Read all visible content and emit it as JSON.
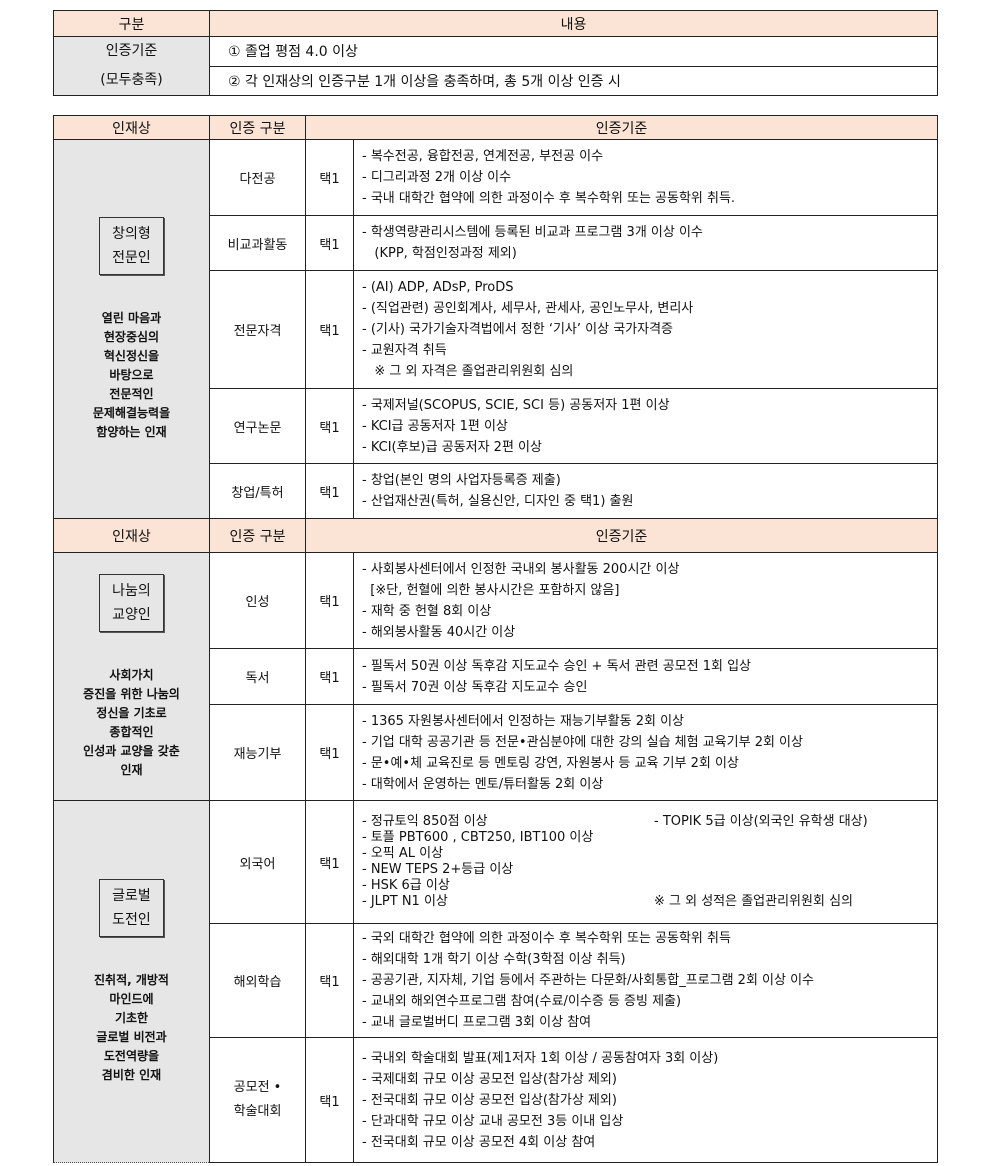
{
  "summary": {
    "headers": [
      "구분",
      "내용"
    ],
    "label_lines": [
      "인증기준",
      "(모두충족)"
    ],
    "rows": [
      "① 졸업 평점 4.0 이상",
      "② 각 인재상의 인증구분 1개 이상을 충족하며, 총 5개 이상 인증 시"
    ]
  },
  "main_headers": [
    "인재상",
    "인증 구분",
    "인증기준"
  ],
  "groups": [
    {
      "title_lines": [
        "창의형",
        "전문인"
      ],
      "desc_lines": [
        "열린 마음과",
        "현장중심의",
        "혁신정신을",
        "바탕으로",
        "전문적인",
        "문제해결능력을",
        "함양하는 인재"
      ],
      "items": [
        {
          "category": "다전공",
          "select": "택1",
          "lines": [
            "- 복수전공, 융합전공, 연계전공, 부전공 이수",
            "- 디그리과정 2개 이상 이수",
            "- 국내 대학간 협약에 의한 과정이수 후 복수학위 또는 공동학위 취득."
          ]
        },
        {
          "category": "비교과활동",
          "select": "택1",
          "lines": [
            "- 학생역량관리시스템에 등록된 비교과 프로그램 3개 이상 이수",
            "   (KPP, 학점인정과정 제외)"
          ]
        },
        {
          "category": "전문자격",
          "select": "택1",
          "lines": [
            "- (AI) ADP, ADsP, ProDS",
            "- (직업관련) 공인회계사, 세무사, 관세사, 공인노무사, 변리사",
            "- (기사) 국가기술자격법에서 정한 ‘기사’ 이상 국가자격증",
            "- 교원자격 취득",
            "   ※ 그 외 자격은 졸업관리위원회 심의"
          ]
        },
        {
          "category": "연구논문",
          "select": "택1",
          "lines": [
            "- 국제저널(SCOPUS, SCIE, SCI 등) 공동저자 1편 이상",
            "- KCI급 공동저자 1편 이상",
            "- KCI(후보)급 공동저자 2편 이상"
          ]
        },
        {
          "category": "창업/특허",
          "select": "택1",
          "lines": [
            "- 창업(본인 명의 사업자등록증 제출)",
            "- 산업재산권(특허, 실용신안, 디자인 중 택1) 출원"
          ]
        }
      ]
    },
    {
      "title_lines": [
        "나눔의",
        "교양인"
      ],
      "desc_lines": [
        "사회가치",
        "증진을 위한 나눔의",
        "정신을 기초로",
        "종합적인",
        "인성과 교양을 갖춘",
        "인재"
      ],
      "items": [
        {
          "category": "인성",
          "select": "택1",
          "lines": [
            "- 사회봉사센터에서 인정한 국내외 봉사활동 200시간 이상",
            "  [※단, 헌혈에 의한 봉사시간은 포함하지 않음]",
            "- 재학 중 헌혈 8회 이상",
            "- 해외봉사활동 40시간 이상"
          ]
        },
        {
          "category": "독서",
          "select": "택1",
          "lines": [
            "- 필독서 50권 이상 독후감 지도교수 승인 + 독서 관련 공모전 1회 입상",
            "- 필독서 70권 이상 독후감 지도교수 승인"
          ]
        },
        {
          "category": "재능기부",
          "select": "택1",
          "lines": [
            "- 1365 자원봉사센터에서 인정하는 재능기부활동 2회 이상",
            "- 기업 대학 공공기관 등 전문•관심분야에 대한 강의 실습 체험 교육기부 2회 이상",
            "- 문•예•체 교육진로 등 멘토링 강연, 자원봉사 등 교육 기부 2회 이상",
            "- 대학에서 운영하는 멘토/튜터활동 2회 이상"
          ]
        }
      ]
    },
    {
      "title_lines": [
        "글로벌",
        "도전인"
      ],
      "desc_lines": [
        "진취적, 개방적",
        "마인드에",
        "기초한",
        "글로벌 비전과",
        "도전역량을",
        "겸비한 인재"
      ],
      "items": [
        {
          "category": "외국어",
          "select": "택1",
          "lines": [
            "- 정규토익 850점 이상",
            "- 토플 PBT600 , CBT250, IBT100 이상",
            "- 오픽 AL 이상",
            "- NEW TEPS 2+등급 이상",
            "- HSK 6급 이상",
            "- JLPT N1 이상"
          ],
          "right": [
            "- TOPIK 5급 이상(외국인 유학생 대상)",
            "※ 그 외 성적은 졸업관리위원회 심의"
          ]
        },
        {
          "category": "해외학습",
          "select": "택1",
          "lines": [
            "- 국외 대학간 협약에 의한 과정이수 후 복수학위 또는 공동학위 취득",
            "- 해외대학 1개 학기 이상 수학(3학점 이상 취득)",
            "- 공공기관, 지자체, 기업 등에서 주관하는 다문화/사회통합_프로그램 2회 이상 이수",
            "- 교내외 해외연수프로그램 참여(수료/이수증 등 증빙 제출)",
            "- 교내 글로벌버디 프로그램 3회 이상 참여"
          ]
        },
        {
          "category_lines": [
            "공모전 •",
            "학술대회"
          ],
          "select": "택1",
          "lines": [
            "- 국내외 학술대회 발표(제1저자 1회 이상 / 공동참여자 3회 이상)",
            "- 국제대회 규모 이상 공모전 입상(참가상 제외)",
            "- 전국대회 규모 이상 공모전 입상(참가상 제외)",
            "- 단과대학 규모 이상 교내 공모전 3등 이내 입상",
            "- 전국대회 규모 이상 공모전 4회 이상 참여"
          ]
        }
      ]
    }
  ]
}
